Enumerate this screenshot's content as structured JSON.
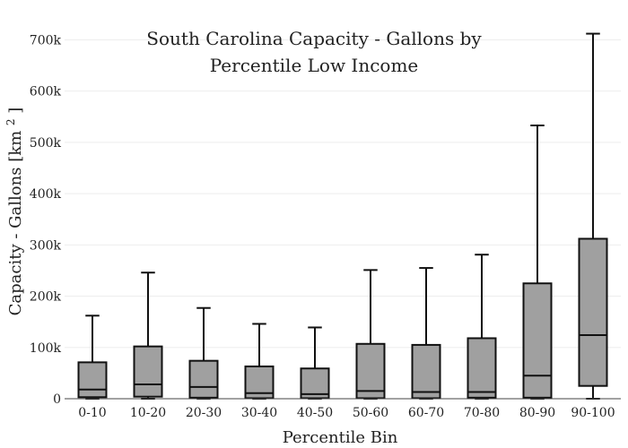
{
  "chart_data": {
    "type": "box",
    "title_lines": [
      "South Carolina Capacity - Gallons by",
      "Percentile Low Income"
    ],
    "xlabel": "Percentile Bin",
    "ylabel": "Capacity - Gallons",
    "ylabel_unit": "[km",
    "ylabel_unit_sup": "2",
    "ylabel_unit_close": "]",
    "ylim": [
      0,
      720000
    ],
    "y_ticks": [
      0,
      100000,
      200000,
      300000,
      400000,
      500000,
      600000,
      700000
    ],
    "y_tick_labels": [
      "0",
      "100k",
      "200k",
      "300k",
      "400k",
      "500k",
      "600k",
      "700k"
    ],
    "grid": true,
    "colors": {
      "box_fill": "#a0a0a0",
      "line": "#111111",
      "grid": "#eeeeee"
    },
    "categories": [
      "0-10",
      "10-20",
      "20-30",
      "30-40",
      "40-50",
      "50-60",
      "60-70",
      "70-80",
      "80-90",
      "90-100"
    ],
    "boxes": [
      {
        "min": 0,
        "q1": 3000,
        "median": 18000,
        "q3": 71000,
        "max": 162000
      },
      {
        "min": 0,
        "q1": 4000,
        "median": 28000,
        "q3": 102000,
        "max": 246000
      },
      {
        "min": 0,
        "q1": 2000,
        "median": 23000,
        "q3": 74000,
        "max": 177000
      },
      {
        "min": 0,
        "q1": 1000,
        "median": 11000,
        "q3": 63000,
        "max": 146000
      },
      {
        "min": 0,
        "q1": 1000,
        "median": 9000,
        "q3": 59000,
        "max": 139000
      },
      {
        "min": 0,
        "q1": 1000,
        "median": 15000,
        "q3": 107000,
        "max": 251000
      },
      {
        "min": 0,
        "q1": 1000,
        "median": 13000,
        "q3": 105000,
        "max": 255000
      },
      {
        "min": 0,
        "q1": 2000,
        "median": 13000,
        "q3": 118000,
        "max": 281000
      },
      {
        "min": 0,
        "q1": 2000,
        "median": 45000,
        "q3": 225000,
        "max": 533000
      },
      {
        "min": 0,
        "q1": 25000,
        "median": 124000,
        "q3": 312000,
        "max": 712000
      }
    ]
  }
}
